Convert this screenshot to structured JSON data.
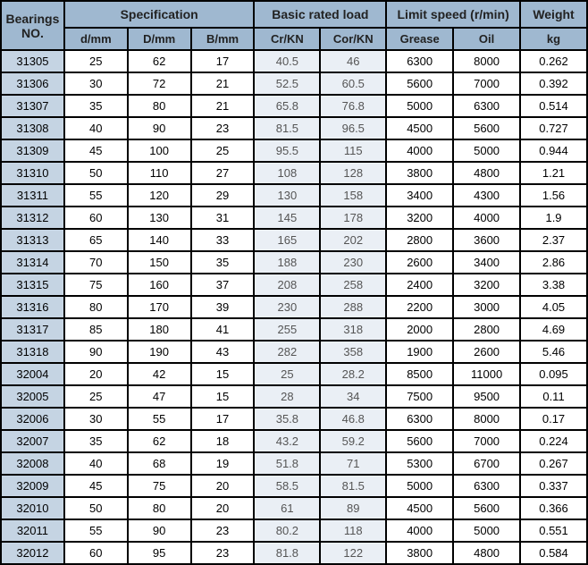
{
  "table": {
    "header_groups": {
      "bearings": "Bearings NO.",
      "spec": "Specification",
      "load": "Basic rated load",
      "speed": "Limit speed (r/min)",
      "weight": "Weight"
    },
    "header_subs": {
      "d": "d/mm",
      "D": "D/mm",
      "B": "B/mm",
      "cr": "Cr/KN",
      "cor": "Cor/KN",
      "grease": "Grease",
      "oil": "Oil",
      "kg": "kg"
    },
    "colors": {
      "header_bg": "#9fb8d0",
      "bearing_bg": "#c5d4e3",
      "load_bg": "#eaeff5",
      "border": "#000000"
    },
    "rows": [
      {
        "no": "31305",
        "d": "25",
        "D": "62",
        "B": "17",
        "cr": "40.5",
        "cor": "46",
        "grease": "6300",
        "oil": "8000",
        "kg": "0.262"
      },
      {
        "no": "31306",
        "d": "30",
        "D": "72",
        "B": "21",
        "cr": "52.5",
        "cor": "60.5",
        "grease": "5600",
        "oil": "7000",
        "kg": "0.392"
      },
      {
        "no": "31307",
        "d": "35",
        "D": "80",
        "B": "21",
        "cr": "65.8",
        "cor": "76.8",
        "grease": "5000",
        "oil": "6300",
        "kg": "0.514"
      },
      {
        "no": "31308",
        "d": "40",
        "D": "90",
        "B": "23",
        "cr": "81.5",
        "cor": "96.5",
        "grease": "4500",
        "oil": "5600",
        "kg": "0.727"
      },
      {
        "no": "31309",
        "d": "45",
        "D": "100",
        "B": "25",
        "cr": "95.5",
        "cor": "115",
        "grease": "4000",
        "oil": "5000",
        "kg": "0.944"
      },
      {
        "no": "31310",
        "d": "50",
        "D": "110",
        "B": "27",
        "cr": "108",
        "cor": "128",
        "grease": "3800",
        "oil": "4800",
        "kg": "1.21"
      },
      {
        "no": "31311",
        "d": "55",
        "D": "120",
        "B": "29",
        "cr": "130",
        "cor": "158",
        "grease": "3400",
        "oil": "4300",
        "kg": "1.56"
      },
      {
        "no": "31312",
        "d": "60",
        "D": "130",
        "B": "31",
        "cr": "145",
        "cor": "178",
        "grease": "3200",
        "oil": "4000",
        "kg": "1.9"
      },
      {
        "no": "31313",
        "d": "65",
        "D": "140",
        "B": "33",
        "cr": "165",
        "cor": "202",
        "grease": "2800",
        "oil": "3600",
        "kg": "2.37"
      },
      {
        "no": "31314",
        "d": "70",
        "D": "150",
        "B": "35",
        "cr": "188",
        "cor": "230",
        "grease": "2600",
        "oil": "3400",
        "kg": "2.86"
      },
      {
        "no": "31315",
        "d": "75",
        "D": "160",
        "B": "37",
        "cr": "208",
        "cor": "258",
        "grease": "2400",
        "oil": "3200",
        "kg": "3.38"
      },
      {
        "no": "31316",
        "d": "80",
        "D": "170",
        "B": "39",
        "cr": "230",
        "cor": "288",
        "grease": "2200",
        "oil": "3000",
        "kg": "4.05"
      },
      {
        "no": "31317",
        "d": "85",
        "D": "180",
        "B": "41",
        "cr": "255",
        "cor": "318",
        "grease": "2000",
        "oil": "2800",
        "kg": "4.69"
      },
      {
        "no": "31318",
        "d": "90",
        "D": "190",
        "B": "43",
        "cr": "282",
        "cor": "358",
        "grease": "1900",
        "oil": "2600",
        "kg": "5.46"
      },
      {
        "no": "32004",
        "d": "20",
        "D": "42",
        "B": "15",
        "cr": "25",
        "cor": "28.2",
        "grease": "8500",
        "oil": "11000",
        "kg": "0.095"
      },
      {
        "no": "32005",
        "d": "25",
        "D": "47",
        "B": "15",
        "cr": "28",
        "cor": "34",
        "grease": "7500",
        "oil": "9500",
        "kg": "0.11"
      },
      {
        "no": "32006",
        "d": "30",
        "D": "55",
        "B": "17",
        "cr": "35.8",
        "cor": "46.8",
        "grease": "6300",
        "oil": "8000",
        "kg": "0.17"
      },
      {
        "no": "32007",
        "d": "35",
        "D": "62",
        "B": "18",
        "cr": "43.2",
        "cor": "59.2",
        "grease": "5600",
        "oil": "7000",
        "kg": "0.224"
      },
      {
        "no": "32008",
        "d": "40",
        "D": "68",
        "B": "19",
        "cr": "51.8",
        "cor": "71",
        "grease": "5300",
        "oil": "6700",
        "kg": "0.267"
      },
      {
        "no": "32009",
        "d": "45",
        "D": "75",
        "B": "20",
        "cr": "58.5",
        "cor": "81.5",
        "grease": "5000",
        "oil": "6300",
        "kg": "0.337"
      },
      {
        "no": "32010",
        "d": "50",
        "D": "80",
        "B": "20",
        "cr": "61",
        "cor": "89",
        "grease": "4500",
        "oil": "5600",
        "kg": "0.366"
      },
      {
        "no": "32011",
        "d": "55",
        "D": "90",
        "B": "23",
        "cr": "80.2",
        "cor": "118",
        "grease": "4000",
        "oil": "5000",
        "kg": "0.551"
      },
      {
        "no": "32012",
        "d": "60",
        "D": "95",
        "B": "23",
        "cr": "81.8",
        "cor": "122",
        "grease": "3800",
        "oil": "4800",
        "kg": "0.584"
      }
    ]
  }
}
